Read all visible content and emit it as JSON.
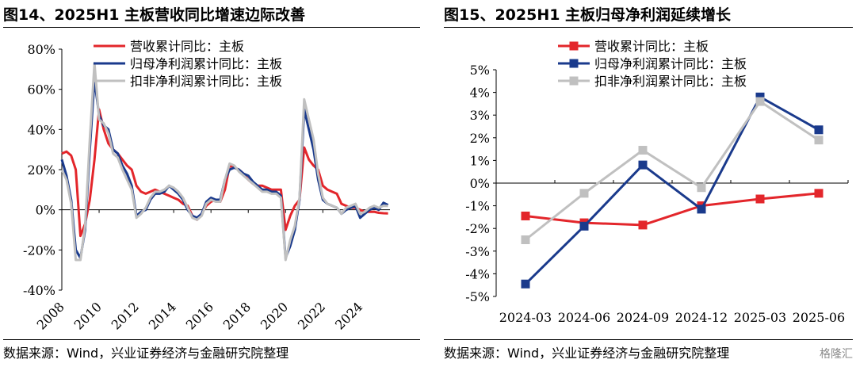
{
  "left_panel": {
    "title": "图14、2025H1 主板营收同比增速边际改善",
    "source": "数据来源：Wind，兴业证券经济与金融研究院整理"
  },
  "right_panel": {
    "title": "图15、2025H1 主板归母净利润延续增长",
    "source": "数据来源：Wind，兴业证券经济与金融研究院整理"
  },
  "watermark": "格隆汇",
  "chart_data": [
    {
      "type": "line",
      "title": "图14、2025H1 主板营收同比增速边际改善",
      "xlabel": "",
      "ylabel": "",
      "x_ticks": [
        "2008",
        "2010",
        "2012",
        "2014",
        "2016",
        "2018",
        "2020",
        "2022",
        "2024"
      ],
      "y_ticks": [
        "80%",
        "60%",
        "40%",
        "20%",
        "0%",
        "-20%",
        "-40%"
      ],
      "ylim": [
        -40,
        80
      ],
      "xlim": [
        2008,
        2025.6
      ],
      "x_tick_rotation_deg": -45,
      "legend_position": "top-center",
      "grid": false,
      "series": [
        {
          "name": "营收累计同比：主板",
          "color": "#e3262b",
          "x": [
            2008.0,
            2008.25,
            2008.5,
            2008.75,
            2009.0,
            2009.25,
            2009.5,
            2009.75,
            2010.0,
            2010.25,
            2010.5,
            2010.75,
            2011.0,
            2011.25,
            2011.5,
            2011.75,
            2012.0,
            2012.25,
            2012.5,
            2012.75,
            2013.0,
            2013.25,
            2013.5,
            2013.75,
            2014.0,
            2014.25,
            2014.5,
            2014.75,
            2015.0,
            2015.25,
            2015.5,
            2015.75,
            2016.0,
            2016.25,
            2016.5,
            2016.75,
            2017.0,
            2017.25,
            2017.5,
            2017.75,
            2018.0,
            2018.25,
            2018.5,
            2018.75,
            2019.0,
            2019.25,
            2019.5,
            2019.75,
            2020.0,
            2020.25,
            2020.5,
            2020.75,
            2021.0,
            2021.25,
            2021.5,
            2021.75,
            2022.0,
            2022.25,
            2022.5,
            2022.75,
            2023.0,
            2023.25,
            2023.5,
            2023.75,
            2024.0,
            2024.25,
            2024.5,
            2024.75,
            2025.0,
            2025.25,
            2025.5
          ],
          "values": [
            28,
            29,
            27,
            20,
            -13,
            -7,
            5,
            25,
            50,
            40,
            33,
            30,
            28,
            25,
            22,
            20,
            12,
            9,
            8,
            9,
            10,
            9,
            8,
            7,
            6,
            5,
            3,
            2,
            -3,
            -5,
            -2,
            2,
            4,
            5,
            4,
            10,
            22,
            21,
            20,
            18,
            15,
            13,
            12,
            12,
            11,
            10,
            10,
            10,
            -10,
            -3,
            2,
            5,
            31,
            25,
            22,
            20,
            12,
            10,
            9,
            8,
            3,
            2,
            1,
            1,
            0,
            -1,
            -1,
            -1,
            -1.5,
            -1.7,
            -1.8
          ]
        },
        {
          "name": "归母净利润累计同比：主板",
          "color": "#1a3a8c",
          "x": [
            2008.0,
            2008.25,
            2008.5,
            2008.75,
            2009.0,
            2009.25,
            2009.5,
            2009.75,
            2010.0,
            2010.25,
            2010.5,
            2010.75,
            2011.0,
            2011.25,
            2011.5,
            2011.75,
            2012.0,
            2012.25,
            2012.5,
            2012.75,
            2013.0,
            2013.25,
            2013.5,
            2013.75,
            2014.0,
            2014.25,
            2014.5,
            2014.75,
            2015.0,
            2015.25,
            2015.5,
            2015.75,
            2016.0,
            2016.25,
            2016.5,
            2016.75,
            2017.0,
            2017.25,
            2017.5,
            2017.75,
            2018.0,
            2018.25,
            2018.5,
            2018.75,
            2019.0,
            2019.25,
            2019.5,
            2019.75,
            2020.0,
            2020.25,
            2020.5,
            2020.75,
            2021.0,
            2021.25,
            2021.5,
            2021.75,
            2022.0,
            2022.25,
            2022.5,
            2022.75,
            2023.0,
            2023.25,
            2023.5,
            2023.75,
            2024.0,
            2024.25,
            2024.5,
            2024.75,
            2025.0,
            2025.25,
            2025.5
          ],
          "values": [
            25,
            17,
            5,
            -20,
            -24,
            -10,
            30,
            65,
            47,
            42,
            40,
            30,
            28,
            22,
            18,
            12,
            -3,
            -1,
            0,
            5,
            8,
            8,
            9,
            12,
            10,
            8,
            5,
            0,
            -3,
            -4,
            -2,
            4,
            6,
            5,
            5,
            15,
            20,
            21,
            20,
            18,
            17,
            14,
            12,
            10,
            10,
            9,
            9,
            7,
            -24,
            -18,
            -10,
            5,
            50,
            40,
            30,
            15,
            5,
            3,
            2,
            1,
            -2,
            0,
            1,
            2,
            -4,
            -2,
            0,
            1,
            0,
            3.5,
            2.4
          ]
        },
        {
          "name": "扣非净利润累计同比：主板",
          "color": "#c0c0c0",
          "x": [
            2008.0,
            2008.25,
            2008.5,
            2008.75,
            2009.0,
            2009.25,
            2009.5,
            2009.75,
            2010.0,
            2010.25,
            2010.5,
            2010.75,
            2011.0,
            2011.25,
            2011.5,
            2011.75,
            2012.0,
            2012.25,
            2012.5,
            2012.75,
            2013.0,
            2013.25,
            2013.5,
            2013.75,
            2014.0,
            2014.25,
            2014.5,
            2014.75,
            2015.0,
            2015.25,
            2015.5,
            2015.75,
            2016.0,
            2016.25,
            2016.5,
            2016.75,
            2017.0,
            2017.25,
            2017.5,
            2017.75,
            2018.0,
            2018.25,
            2018.5,
            2018.75,
            2019.0,
            2019.25,
            2019.5,
            2019.75,
            2020.0,
            2020.25,
            2020.5,
            2020.75,
            2021.0,
            2021.25,
            2021.5,
            2021.75,
            2022.0,
            2022.25,
            2022.5,
            2022.75,
            2023.0,
            2023.25,
            2023.5,
            2023.75,
            2024.0,
            2024.25,
            2024.5,
            2024.75,
            2025.0,
            2025.25,
            2025.5
          ],
          "values": [
            20,
            15,
            3,
            -25,
            -25,
            -8,
            35,
            73,
            45,
            43,
            38,
            28,
            26,
            20,
            15,
            10,
            -4,
            -2,
            1,
            6,
            9,
            9,
            10,
            12,
            11,
            9,
            6,
            1,
            -4,
            -5,
            -3,
            3,
            5,
            4,
            4,
            15,
            23,
            22,
            19,
            17,
            15,
            13,
            11,
            9,
            9,
            8,
            8,
            6,
            -25,
            -15,
            -8,
            6,
            55,
            45,
            35,
            18,
            6,
            3,
            2,
            1,
            -2,
            1,
            2,
            3,
            -2,
            -1,
            1,
            2,
            1,
            2.0,
            1.9
          ]
        }
      ]
    },
    {
      "type": "line",
      "title": "图15、2025H1 主板归母净利润延续增长",
      "xlabel": "",
      "ylabel": "",
      "categories": [
        "2024-03",
        "2024-06",
        "2024-09",
        "2024-12",
        "2025-03",
        "2025-06"
      ],
      "y_ticks": [
        "5%",
        "4%",
        "3%",
        "2%",
        "1%",
        "0%",
        "-1%",
        "-2%",
        "-3%",
        "-4%",
        "-5%"
      ],
      "ylim": [
        -5,
        5
      ],
      "legend_position": "top-center",
      "grid": false,
      "markers": true,
      "series": [
        {
          "name": "营收累计同比：主板",
          "color": "#e3262b",
          "values": [
            -1.45,
            -1.75,
            -1.85,
            -1.0,
            -0.7,
            -0.45
          ]
        },
        {
          "name": "归母净利润累计同比：主板",
          "color": "#1a3a8c",
          "values": [
            -4.45,
            -1.9,
            0.8,
            -1.15,
            3.8,
            2.35
          ]
        },
        {
          "name": "扣非净利润累计同比：主板",
          "color": "#c0c0c0",
          "values": [
            -2.5,
            -0.45,
            1.45,
            -0.2,
            3.6,
            1.9
          ]
        }
      ]
    }
  ]
}
